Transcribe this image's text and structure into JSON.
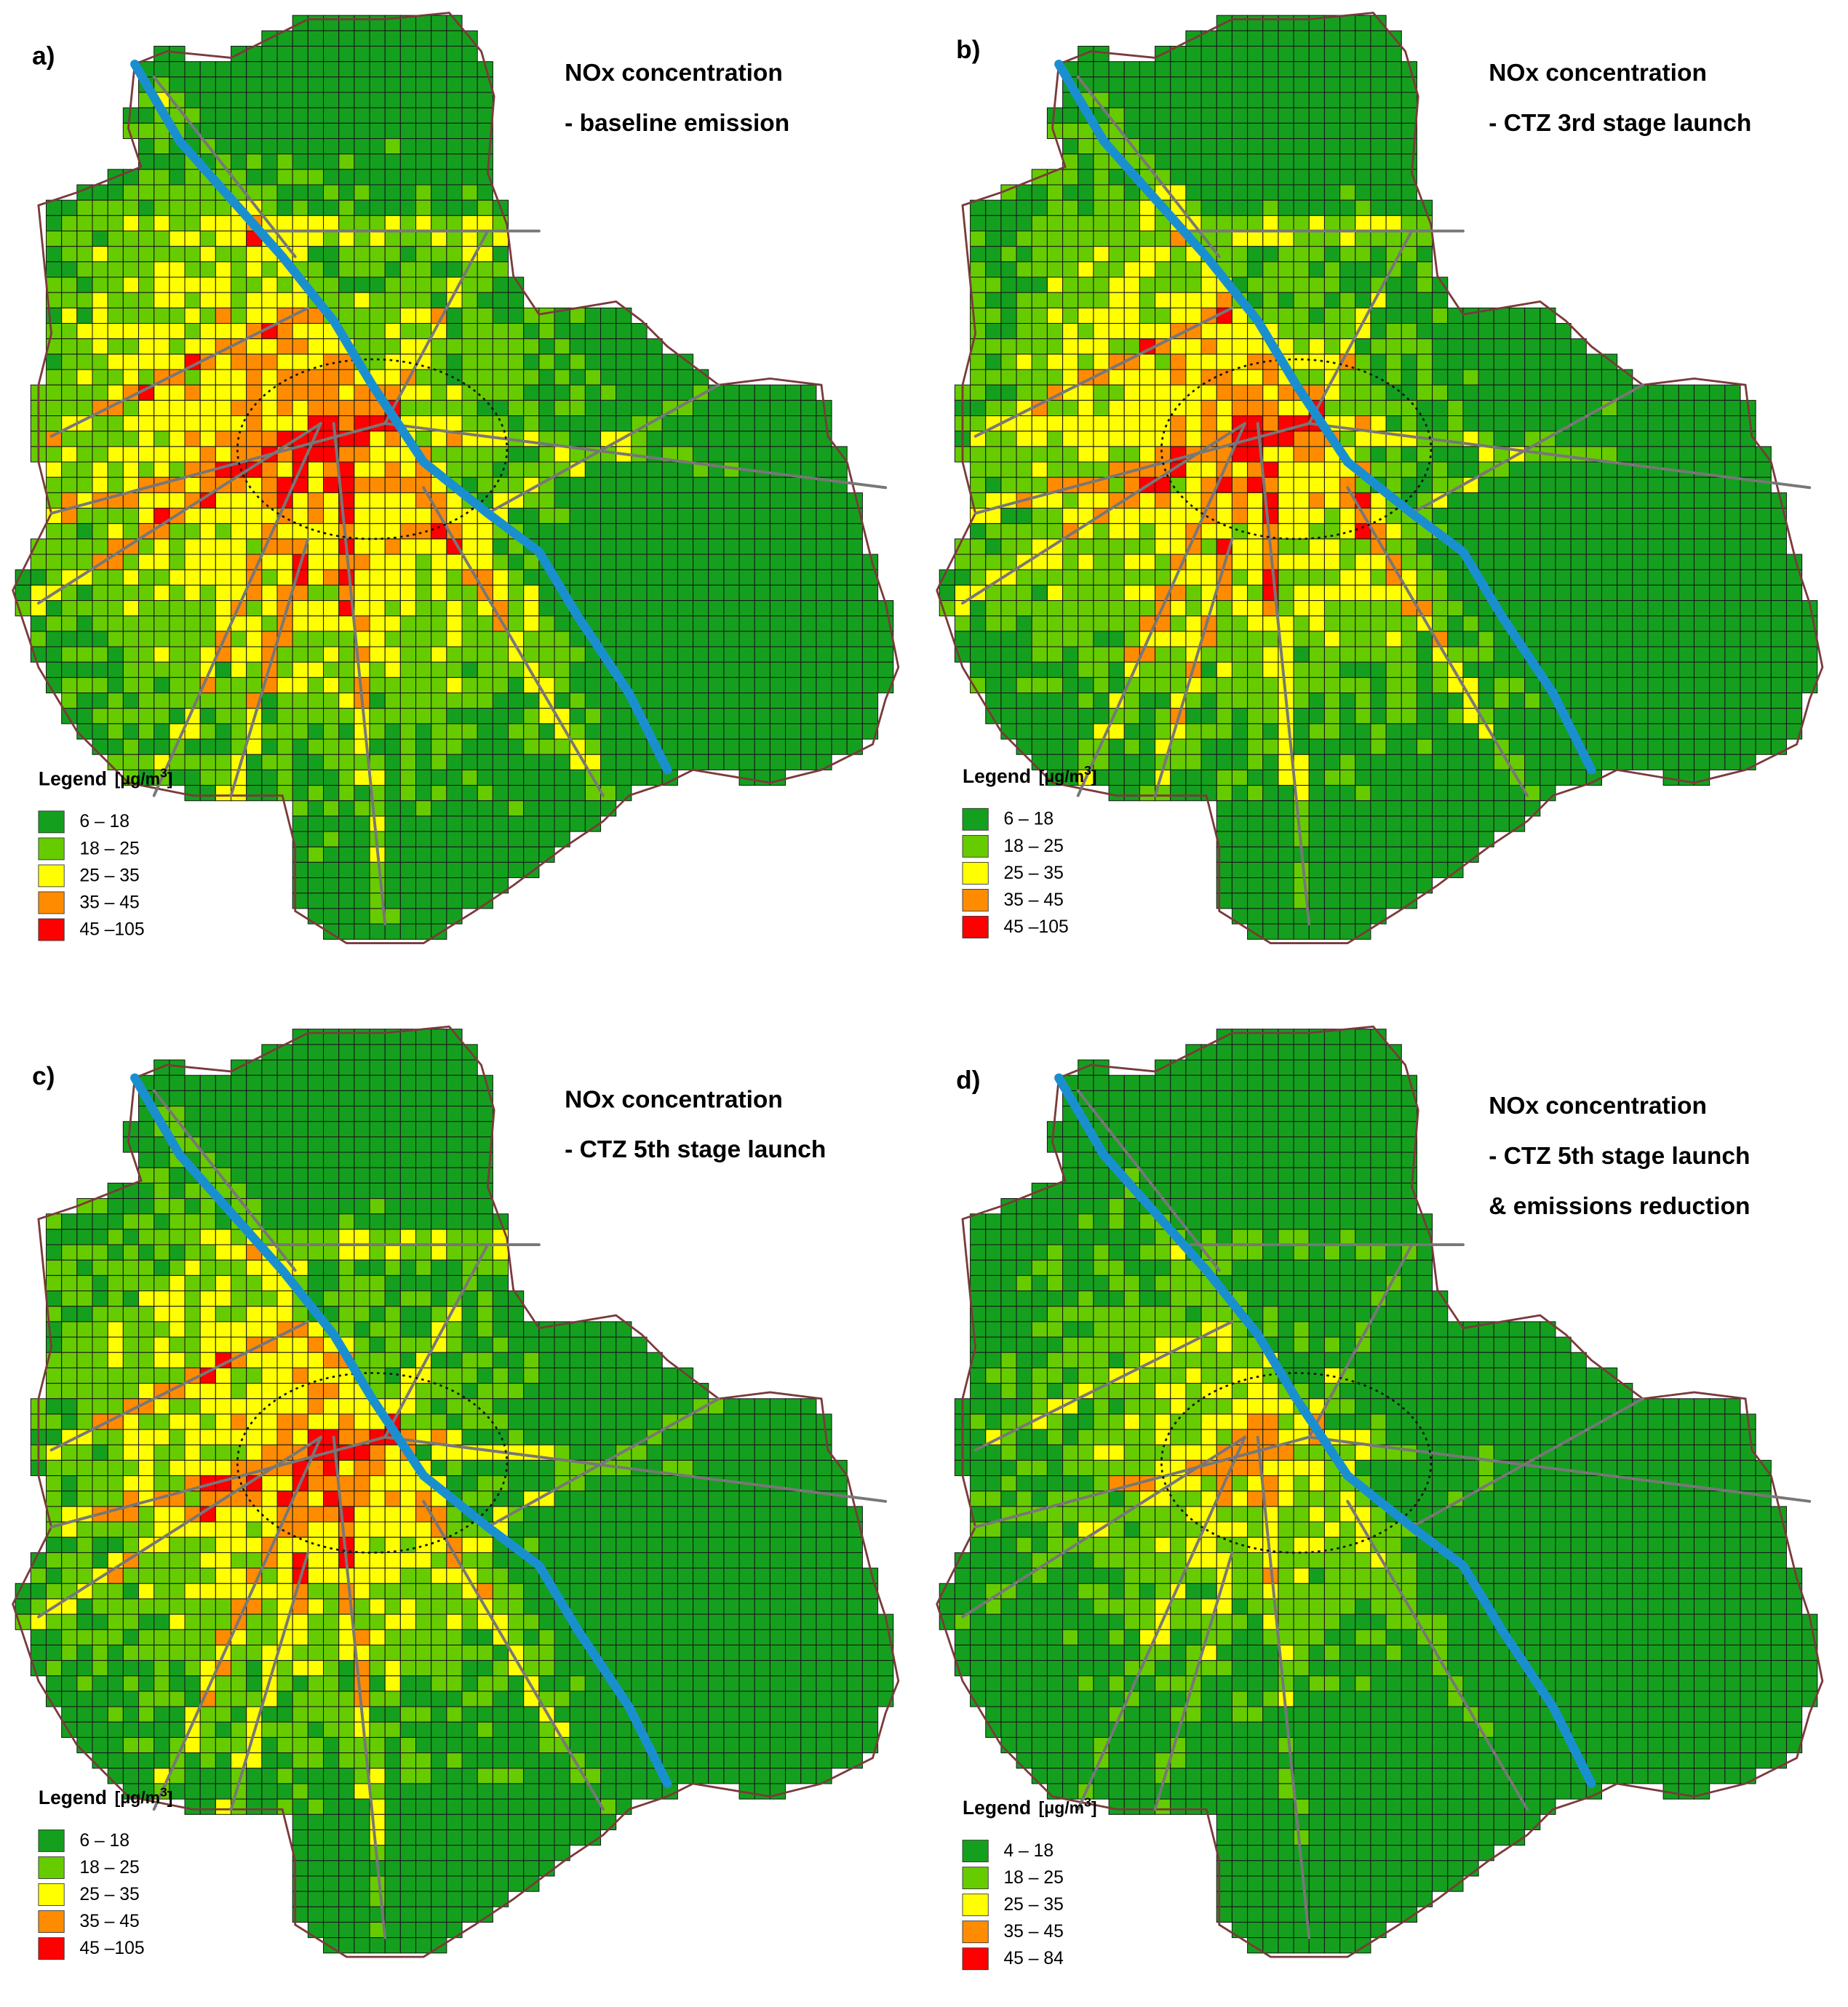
{
  "panels": [
    {
      "label": "a)",
      "title": [
        "NOx concentration",
        "- baseline emission"
      ],
      "legend": {
        "title": "Legend",
        "unit": "[μg/m",
        "unit_sup": "3",
        "unit_close": "]",
        "items": [
          {
            "label": "6 – 18",
            "color": "#14a01e"
          },
          {
            "label": "18 – 25",
            "color": "#66cc00"
          },
          {
            "label": "25 – 35",
            "color": "#ffff00"
          },
          {
            "label": "35 – 45",
            "color": "#ff8c00"
          },
          {
            "label": "45 –105",
            "color": "#ff0000"
          }
        ]
      }
    },
    {
      "label": "b)",
      "title": [
        "NOx concentration",
        "- CTZ 3rd stage launch"
      ],
      "legend": {
        "title": "Legend",
        "unit": "[μg/m",
        "unit_sup": "3",
        "unit_close": "]",
        "items": [
          {
            "label": "6 – 18",
            "color": "#14a01e"
          },
          {
            "label": "18 – 25",
            "color": "#66cc00"
          },
          {
            "label": "25 – 35",
            "color": "#ffff00"
          },
          {
            "label": "35 – 45",
            "color": "#ff8c00"
          },
          {
            "label": "45 –105",
            "color": "#ff0000"
          }
        ]
      }
    },
    {
      "label": "c)",
      "title": [
        "NOx concentration",
        "- CTZ 5th stage launch"
      ],
      "legend": {
        "title": "Legend",
        "unit": "[μg/m",
        "unit_sup": "3",
        "unit_close": "]",
        "items": [
          {
            "label": "6 – 18",
            "color": "#14a01e"
          },
          {
            "label": "18 – 25",
            "color": "#66cc00"
          },
          {
            "label": "25 – 35",
            "color": "#ffff00"
          },
          {
            "label": "35 – 45",
            "color": "#ff8c00"
          },
          {
            "label": "45 –105",
            "color": "#ff0000"
          }
        ]
      }
    },
    {
      "label": "d)",
      "title": [
        "NOx concentration",
        "- CTZ 5th stage launch",
        "& emissions reduction"
      ],
      "legend": {
        "title": "Legend",
        "unit": "[μg/m",
        "unit_sup": "3",
        "unit_close": "]",
        "items": [
          {
            "label": "4 – 18",
            "color": "#14a01e"
          },
          {
            "label": "18 – 25",
            "color": "#66cc00"
          },
          {
            "label": "25 – 35",
            "color": "#ffff00"
          },
          {
            "label": "35 – 45",
            "color": "#ff8c00"
          },
          {
            "label": "45 – 84",
            "color": "#ff0000"
          }
        ]
      }
    }
  ]
}
